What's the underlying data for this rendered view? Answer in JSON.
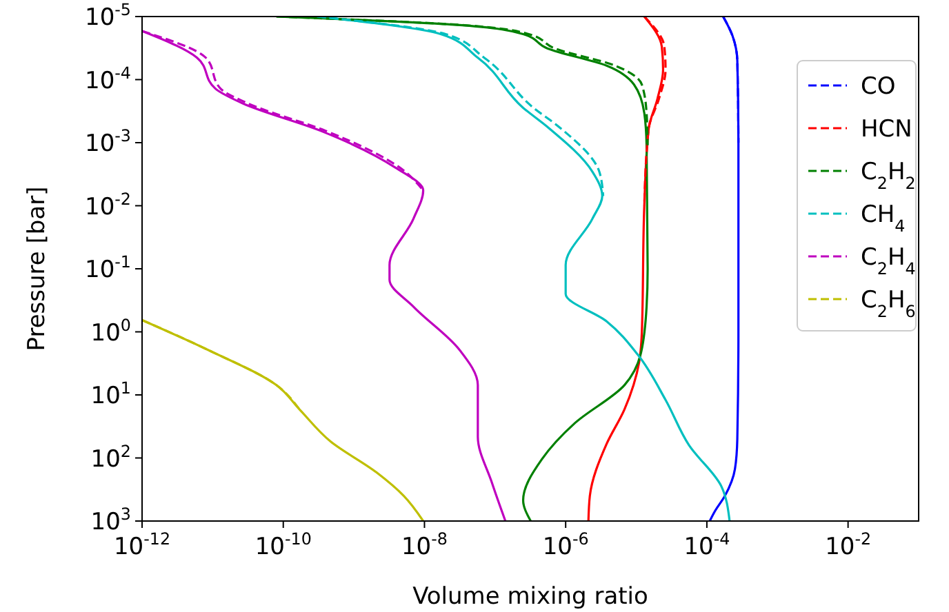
{
  "chart_data": {
    "type": "line",
    "xlabel": "Volume mixing ratio",
    "ylabel": "Pressure [bar]",
    "log": "xy",
    "legend": "top right",
    "xlim": [
      1e-12,
      0.1
    ],
    "ylim": [
      1000,
      1e-05
    ],
    "xticks": [
      {
        "value": 1e-12,
        "label": "10$^{-12}$"
      },
      {
        "value": 1e-10,
        "label": "10$^{-10}$"
      },
      {
        "value": 1e-08,
        "label": "10$^{-8}$"
      },
      {
        "value": 1e-06,
        "label": "10$^{-6}$"
      },
      {
        "value": 0.0001,
        "label": "10$^{-4}$"
      },
      {
        "value": 0.01,
        "label": "10$^{-2}$"
      }
    ],
    "yticks": [
      {
        "value": 1e-05,
        "label": "10$^{-5}$"
      },
      {
        "value": 0.0001,
        "label": "10$^{-4}$"
      },
      {
        "value": 0.001,
        "label": "10$^{-3}$"
      },
      {
        "value": 0.01,
        "label": "10$^{-2}$"
      },
      {
        "value": 0.1,
        "label": "10$^{-1}$"
      },
      {
        "value": 1,
        "label": "10$^{0}$"
      },
      {
        "value": 10,
        "label": "10$^{1}$"
      },
      {
        "value": 100,
        "label": "10$^{2}$"
      },
      {
        "value": 1000,
        "label": "10$^{3}$"
      }
    ],
    "series": [
      {
        "color": "#0000ff",
        "line_style": "solid",
        "x": [
          0.00017,
          0.00023,
          0.00027,
          0.00028,
          0.00028,
          0.00027,
          0.00025,
          0.00018,
          0.00013,
          0.00011
        ],
        "values": [
          1e-05,
          2e-05,
          5e-05,
          0.001,
          1,
          50,
          150,
          400,
          700,
          1000
        ]
      },
      {
        "color": "#ff0000",
        "line_style": "solid",
        "x": [
          1.3e-05,
          2.3e-05,
          2.4e-05,
          2e-05,
          1.5e-05,
          1.3e-05,
          1.2e-05,
          1.1e-05,
          6.8e-06,
          3.8e-06,
          2.2e-06,
          2.1e-06
        ],
        "values": [
          1e-05,
          3e-05,
          7e-05,
          0.0002,
          0.0006,
          0.01,
          1,
          3,
          17,
          60,
          400,
          1000
        ]
      },
      {
        "color": "#008000",
        "line_style": "solid",
        "x": [
          8e-11,
          2.7e-08,
          2.5e-07,
          5.5e-07,
          3.8e-06,
          9.3e-06,
          1.3e-05,
          1.4e-05,
          1.45e-05,
          1.4e-05,
          1.15e-05,
          6.8e-06,
          1.35e-06,
          4.6e-07,
          2.5e-07,
          3.2e-07
        ],
        "values": [
          1e-05,
          1.35e-05,
          1.9e-05,
          3.2e-05,
          6e-05,
          0.00012,
          0.00034,
          0.0011,
          0.1,
          0.4,
          2.3,
          7,
          28,
          105,
          470,
          1000
        ]
      },
      {
        "color": "#00bfbf",
        "line_style": "solid",
        "x": [
          3e-10,
          1.7e-08,
          5.7e-08,
          2.5e-07,
          5.5e-07,
          2.4e-06,
          3.3e-06,
          2.4e-06,
          1e-06,
          1e-06,
          3.8e-06,
          1.05e-05,
          2.6e-05,
          5.6e-05,
          0.00016,
          0.00021
        ],
        "values": [
          1e-05,
          1.9e-05,
          4.5e-05,
          0.00028,
          0.00056,
          0.0029,
          0.007,
          0.016,
          0.087,
          0.25,
          0.68,
          2.3,
          12,
          63,
          280,
          1000
        ]
      },
      {
        "color": "#bf00bf",
        "line_style": "solid",
        "x": [
          1e-12,
          6e-12,
          1.1e-11,
          2.7e-11,
          3.4e-10,
          3.9e-09,
          9.6e-09,
          7e-09,
          3.2e-09,
          3.2e-09,
          7e-09,
          3.1e-08,
          5.7e-08,
          5.7e-08,
          9e-08,
          1.4e-07
        ],
        "values": [
          1.7e-05,
          4.5e-05,
          0.00014,
          0.00024,
          0.00065,
          0.0025,
          0.0057,
          0.016,
          0.087,
          0.15,
          0.4,
          1.9,
          7,
          46,
          245,
          1000
        ]
      },
      {
        "color": "#bfbf00",
        "line_style": "solid",
        "x": [
          1e-12,
          8.3e-12,
          8e-11,
          1.7e-10,
          4.7e-10,
          2.1e-09,
          5.1e-09,
          9.6e-09
        ],
        "values": [
          0.65,
          1.9,
          7,
          17,
          55,
          170,
          400,
          1000
        ]
      },
      {
        "name": "CO",
        "color": "#0000ff",
        "line_style": "dashed",
        "x": [
          0.00017,
          0.00023,
          0.00027,
          0.00028
        ],
        "values": [
          1e-05,
          2e-05,
          5e-05,
          0.001
        ]
      },
      {
        "name": "HCN",
        "color": "#ff0000",
        "line_style": "dashed",
        "x": [
          1.3e-05,
          2.5e-05,
          2.6e-05,
          2.1e-05,
          1.5e-05,
          1.3e-05
        ],
        "values": [
          1e-05,
          3e-05,
          7e-05,
          0.0002,
          0.0006,
          0.01
        ]
      },
      {
        "name": "C$_{2}$H$_{2}$",
        "color": "#008000",
        "line_style": "dashed",
        "x": [
          8e-11,
          3e-08,
          3e-07,
          7e-07,
          5e-06,
          1.2e-05,
          1.4e-05,
          1.45e-05
        ],
        "values": [
          1e-05,
          1.35e-05,
          1.9e-05,
          3.2e-05,
          6e-05,
          0.00012,
          0.00034,
          0.0011
        ]
      },
      {
        "name": "CH$_{4}$",
        "color": "#00bfbf",
        "line_style": "dashed",
        "x": [
          3e-10,
          2e-08,
          7e-08,
          3.5e-07,
          8e-07,
          3e-06,
          3.4e-06
        ],
        "values": [
          1e-05,
          1.9e-05,
          4.5e-05,
          0.00028,
          0.00056,
          0.0029,
          0.007
        ]
      },
      {
        "name": "C$_{2}$H$_{4}$",
        "color": "#bf00bf",
        "line_style": "dashed",
        "x": [
          1e-12,
          8e-12,
          1.3e-11,
          3.2e-11,
          4e-10,
          4.5e-09,
          9.6e-09
        ],
        "values": [
          1.7e-05,
          4.5e-05,
          0.00014,
          0.00024,
          0.00065,
          0.0025,
          0.0057
        ]
      },
      {
        "name": "C$_{2}$H$_{6}$",
        "color": "#bfbf00",
        "line_style": "dashed",
        "x": [
          1e-12,
          8.3e-12,
          8e-11,
          1.7e-10
        ],
        "values": [
          0.65,
          1.9,
          7,
          17
        ]
      }
    ]
  }
}
